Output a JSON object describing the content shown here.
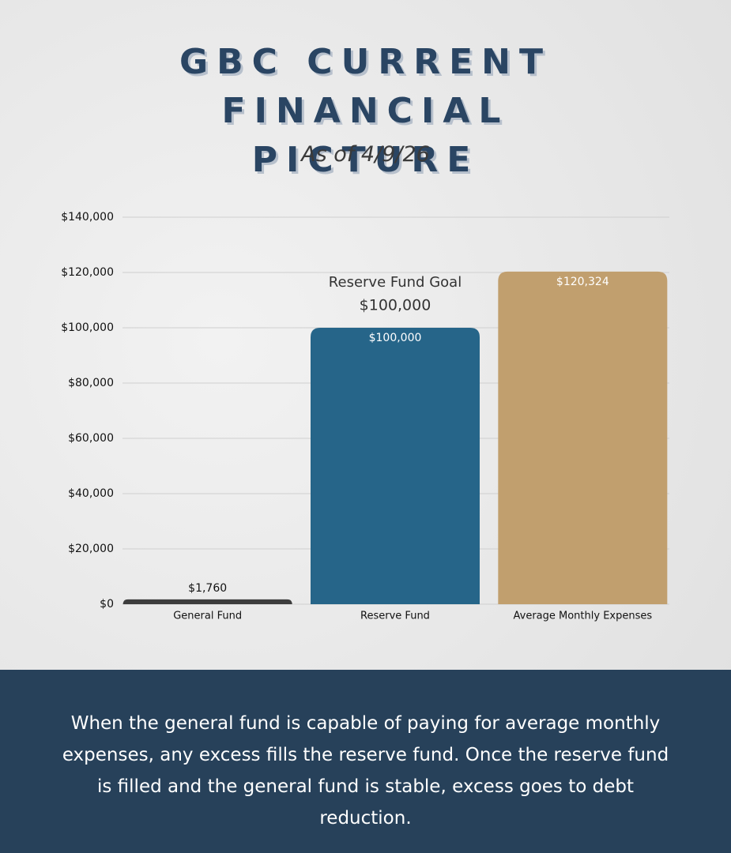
{
  "chart_data": {
    "type": "bar",
    "title": "GBC CURRENT FINANCIAL PICTURE",
    "subtitle": "As of 4/9/26",
    "categories": [
      "General Fund",
      "Reserve Fund",
      "Average Monthly Expenses"
    ],
    "values": [
      1760,
      100000,
      120324
    ],
    "value_labels": [
      "$1,760",
      "$100,000",
      "$120,324"
    ],
    "colors": [
      "#3d3d3d",
      "#266589",
      "#c19f6e"
    ],
    "ylim": [
      0,
      140000
    ],
    "yticks": [
      {
        "value": 0,
        "label": "$0"
      },
      {
        "value": 20000,
        "label": "$20,000"
      },
      {
        "value": 40000,
        "label": "$40,000"
      },
      {
        "value": 60000,
        "label": "$60,000"
      },
      {
        "value": 80000,
        "label": "$80,000"
      },
      {
        "value": 100000,
        "label": "$100,000"
      },
      {
        "value": 120000,
        "label": "$120,000"
      },
      {
        "value": 140000,
        "label": "$140,000"
      }
    ],
    "grid": true,
    "annotation": {
      "text": "Reserve Fund Goal",
      "value": 100000,
      "value_label": "$100,000"
    },
    "footnote": "When the general fund is capable of paying for average monthly expenses, any excess fills the reserve fund. Once the reserve fund is filled and the general fund is stable, excess goes to debt reduction."
  }
}
